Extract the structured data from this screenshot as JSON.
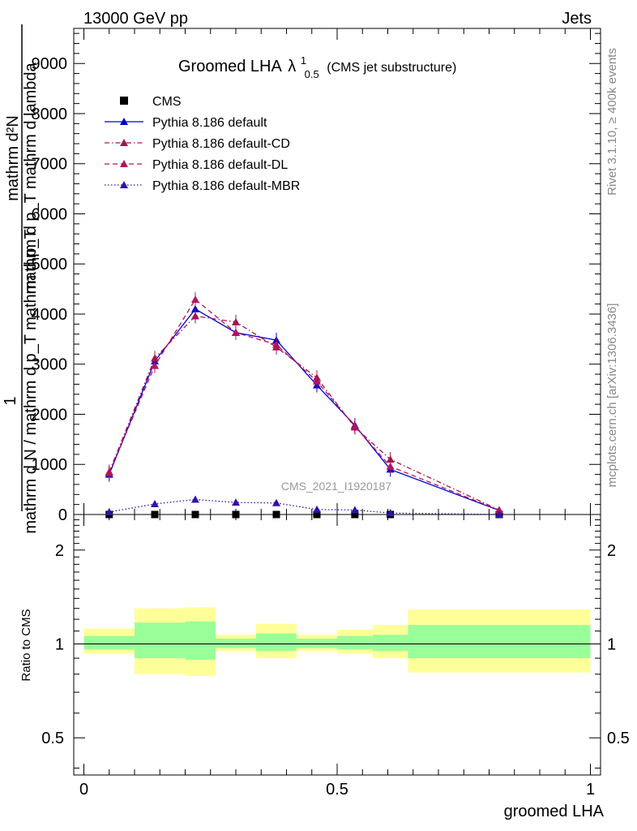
{
  "header": {
    "left": "13000 GeV pp",
    "right": "Jets"
  },
  "main_plot": {
    "title_main": "Groomed LHA",
    "title_lambda": "λ",
    "title_sup": "1",
    "title_sub": "0.5",
    "title_note": "(CMS jet substructure)",
    "ylabel_top": "mathrm d²N",
    "ylabel_top_sub": "mathrm d p_T mathrm d lambda",
    "ylabel_frac_num": "1",
    "ylabel_bottom": "mathrm d N / mathrm d p_T mathrm d p_T",
    "watermark": "CMS_2021_I1920187",
    "side_top": "Rivet 3.1.10, ≥ 400k events",
    "side_bottom": "mcplots.cern.ch [arXiv:1306.3436]"
  },
  "ratio_plot": {
    "ylabel": "Ratio to CMS",
    "xlabel": "groomed LHA"
  },
  "legend": [
    {
      "label": "CMS",
      "color": "#000000",
      "marker": "square",
      "dash": "none"
    },
    {
      "label": "Pythia 8.186 default",
      "color": "#0000cc",
      "marker": "triangle",
      "dash": "solid"
    },
    {
      "label": "Pythia 8.186 default-CD",
      "color": "#a0174f",
      "marker": "triangle",
      "dash": "dashdot"
    },
    {
      "label": "Pythia 8.186 default-DL",
      "color": "#b5135f",
      "marker": "triangle",
      "dash": "dashed"
    },
    {
      "label": "Pythia 8.186 default-MBR",
      "color": "#3311aa",
      "marker": "triangle",
      "dash": "dotted"
    }
  ],
  "chart_data": {
    "type": "line",
    "title": "Groomed LHA λ^1_0.5 (CMS jet substructure)",
    "xlabel": "groomed LHA",
    "xlim": [
      -0.02,
      1.02
    ],
    "x_ticks": [
      0,
      0.5,
      1
    ],
    "x_tick_labels": [
      "0",
      "0.5",
      "1"
    ],
    "ylim": [
      0,
      9700
    ],
    "y_ticks": [
      0,
      1000,
      2000,
      3000,
      4000,
      5000,
      6000,
      7000,
      8000,
      9000
    ],
    "y_tick_labels": [
      "0",
      "1000",
      "2000",
      "3000",
      "4000",
      "5000",
      "6000",
      "7000",
      "8000",
      "9000"
    ],
    "bin_edges": [
      0.0,
      0.1,
      0.18,
      0.26,
      0.34,
      0.42,
      0.5,
      0.57,
      0.64,
      1.0
    ],
    "x": [
      0.05,
      0.14,
      0.22,
      0.3,
      0.38,
      0.46,
      0.535,
      0.605,
      0.82
    ],
    "series": [
      {
        "name": "CMS",
        "values": [
          0,
          0,
          0,
          0,
          0,
          0,
          0,
          0,
          0
        ]
      },
      {
        "name": "Pythia 8.186 default",
        "values": [
          800,
          3060,
          4100,
          3630,
          3480,
          2580,
          1780,
          900,
          80
        ]
      },
      {
        "name": "Pythia 8.186 default-CD",
        "values": [
          850,
          3120,
          3960,
          3840,
          3340,
          2730,
          1740,
          1100,
          90
        ]
      },
      {
        "name": "Pythia 8.186 default-DL",
        "values": [
          830,
          2970,
          4290,
          3630,
          3390,
          2660,
          1760,
          960,
          85
        ]
      },
      {
        "name": "Pythia 8.186 default-MBR",
        "values": [
          50,
          210,
          300,
          240,
          230,
          100,
          90,
          30,
          0
        ]
      }
    ],
    "ratio": {
      "ylabel": "Ratio to CMS",
      "ylim": [
        0.38,
        2.6
      ],
      "y_ticks": [
        0.5,
        1,
        2
      ],
      "y_tick_labels": [
        "0.5",
        "1",
        "2"
      ],
      "bands_inner": [
        [
          0.0,
          0.1,
          0.96,
          1.06
        ],
        [
          0.1,
          0.2,
          0.9,
          1.17
        ],
        [
          0.2,
          0.26,
          0.89,
          1.18
        ],
        [
          0.26,
          0.34,
          0.97,
          1.04
        ],
        [
          0.34,
          0.42,
          0.95,
          1.08
        ],
        [
          0.42,
          0.5,
          0.97,
          1.04
        ],
        [
          0.5,
          0.57,
          0.96,
          1.06
        ],
        [
          0.57,
          0.64,
          0.95,
          1.07
        ],
        [
          0.64,
          1.0,
          0.9,
          1.15
        ]
      ],
      "bands_outer": [
        [
          0.0,
          0.1,
          0.93,
          1.12
        ],
        [
          0.1,
          0.2,
          0.8,
          1.3
        ],
        [
          0.2,
          0.26,
          0.79,
          1.31
        ],
        [
          0.26,
          0.34,
          0.95,
          1.07
        ],
        [
          0.34,
          0.42,
          0.9,
          1.16
        ],
        [
          0.42,
          0.5,
          0.95,
          1.07
        ],
        [
          0.5,
          0.57,
          0.93,
          1.11
        ],
        [
          0.57,
          0.64,
          0.9,
          1.15
        ],
        [
          0.64,
          1.0,
          0.81,
          1.29
        ]
      ],
      "inner_color": "#99ff99",
      "outer_color": "#ffff99"
    }
  }
}
